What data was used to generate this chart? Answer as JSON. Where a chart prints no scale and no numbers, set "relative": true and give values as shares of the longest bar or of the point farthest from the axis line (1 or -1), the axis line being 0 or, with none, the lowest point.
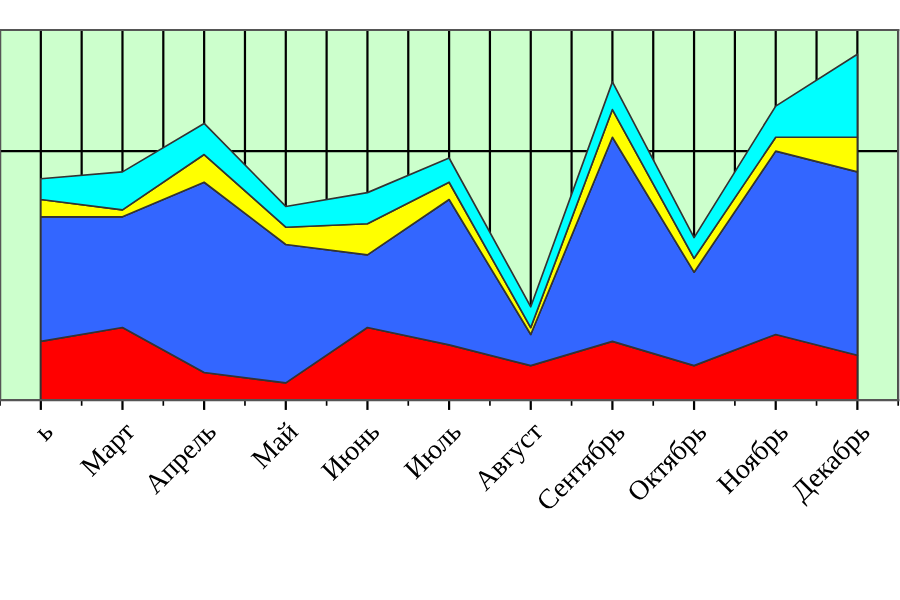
{
  "chart_data": {
    "type": "area",
    "stacked": true,
    "relative": true,
    "grid": true,
    "legend": false,
    "categories": [
      "ь",
      "Март",
      "Апрель",
      "Май",
      "Июнь",
      "Июль",
      "Август",
      "Сентябрь",
      "Октябрь",
      "Ноябрь",
      "Декабрь"
    ],
    "series": [
      {
        "color": "#ff0000",
        "values": [
          0.17,
          0.21,
          0.08,
          0.05,
          0.21,
          0.16,
          0.1,
          0.17,
          0.1,
          0.19,
          0.13
        ]
      },
      {
        "color": "#3366ff",
        "values": [
          0.36,
          0.32,
          0.55,
          0.4,
          0.21,
          0.42,
          0.09,
          0.59,
          0.27,
          0.53,
          0.53
        ]
      },
      {
        "color": "#ffff00",
        "values": [
          0.05,
          0.02,
          0.08,
          0.05,
          0.09,
          0.05,
          0.02,
          0.08,
          0.04,
          0.04,
          0.1
        ]
      },
      {
        "color": "#00ffff",
        "values": [
          0.06,
          0.11,
          0.09,
          0.06,
          0.09,
          0.07,
          0.06,
          0.08,
          0.06,
          0.09,
          0.24
        ]
      }
    ]
  }
}
